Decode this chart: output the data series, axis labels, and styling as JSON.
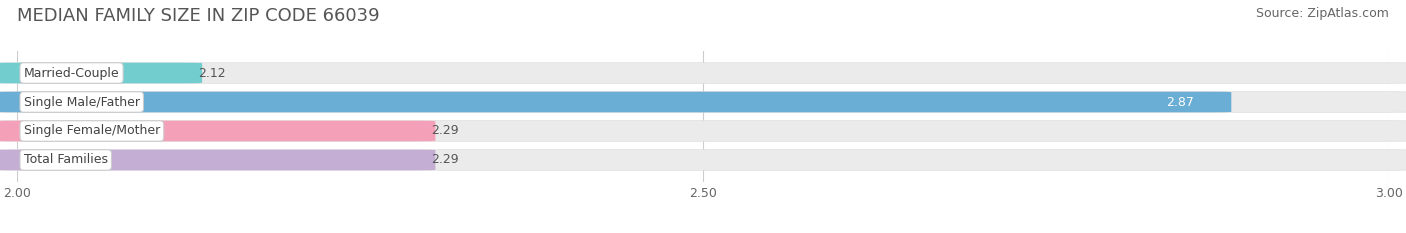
{
  "title": "MEDIAN FAMILY SIZE IN ZIP CODE 66039",
  "source": "Source: ZipAtlas.com",
  "categories": [
    "Married-Couple",
    "Single Male/Father",
    "Single Female/Mother",
    "Total Families"
  ],
  "values": [
    2.12,
    2.87,
    2.29,
    2.29
  ],
  "bar_colors": [
    "#72cece",
    "#6aadd5",
    "#f4a0b8",
    "#c5aed4"
  ],
  "xmin": 2.0,
  "xmax": 3.0,
  "xticks": [
    2.0,
    2.5,
    3.0
  ],
  "background_color": "#ffffff",
  "bar_bg_color": "#ebebeb",
  "title_fontsize": 13,
  "source_fontsize": 9,
  "label_fontsize": 9,
  "value_fontsize": 9
}
